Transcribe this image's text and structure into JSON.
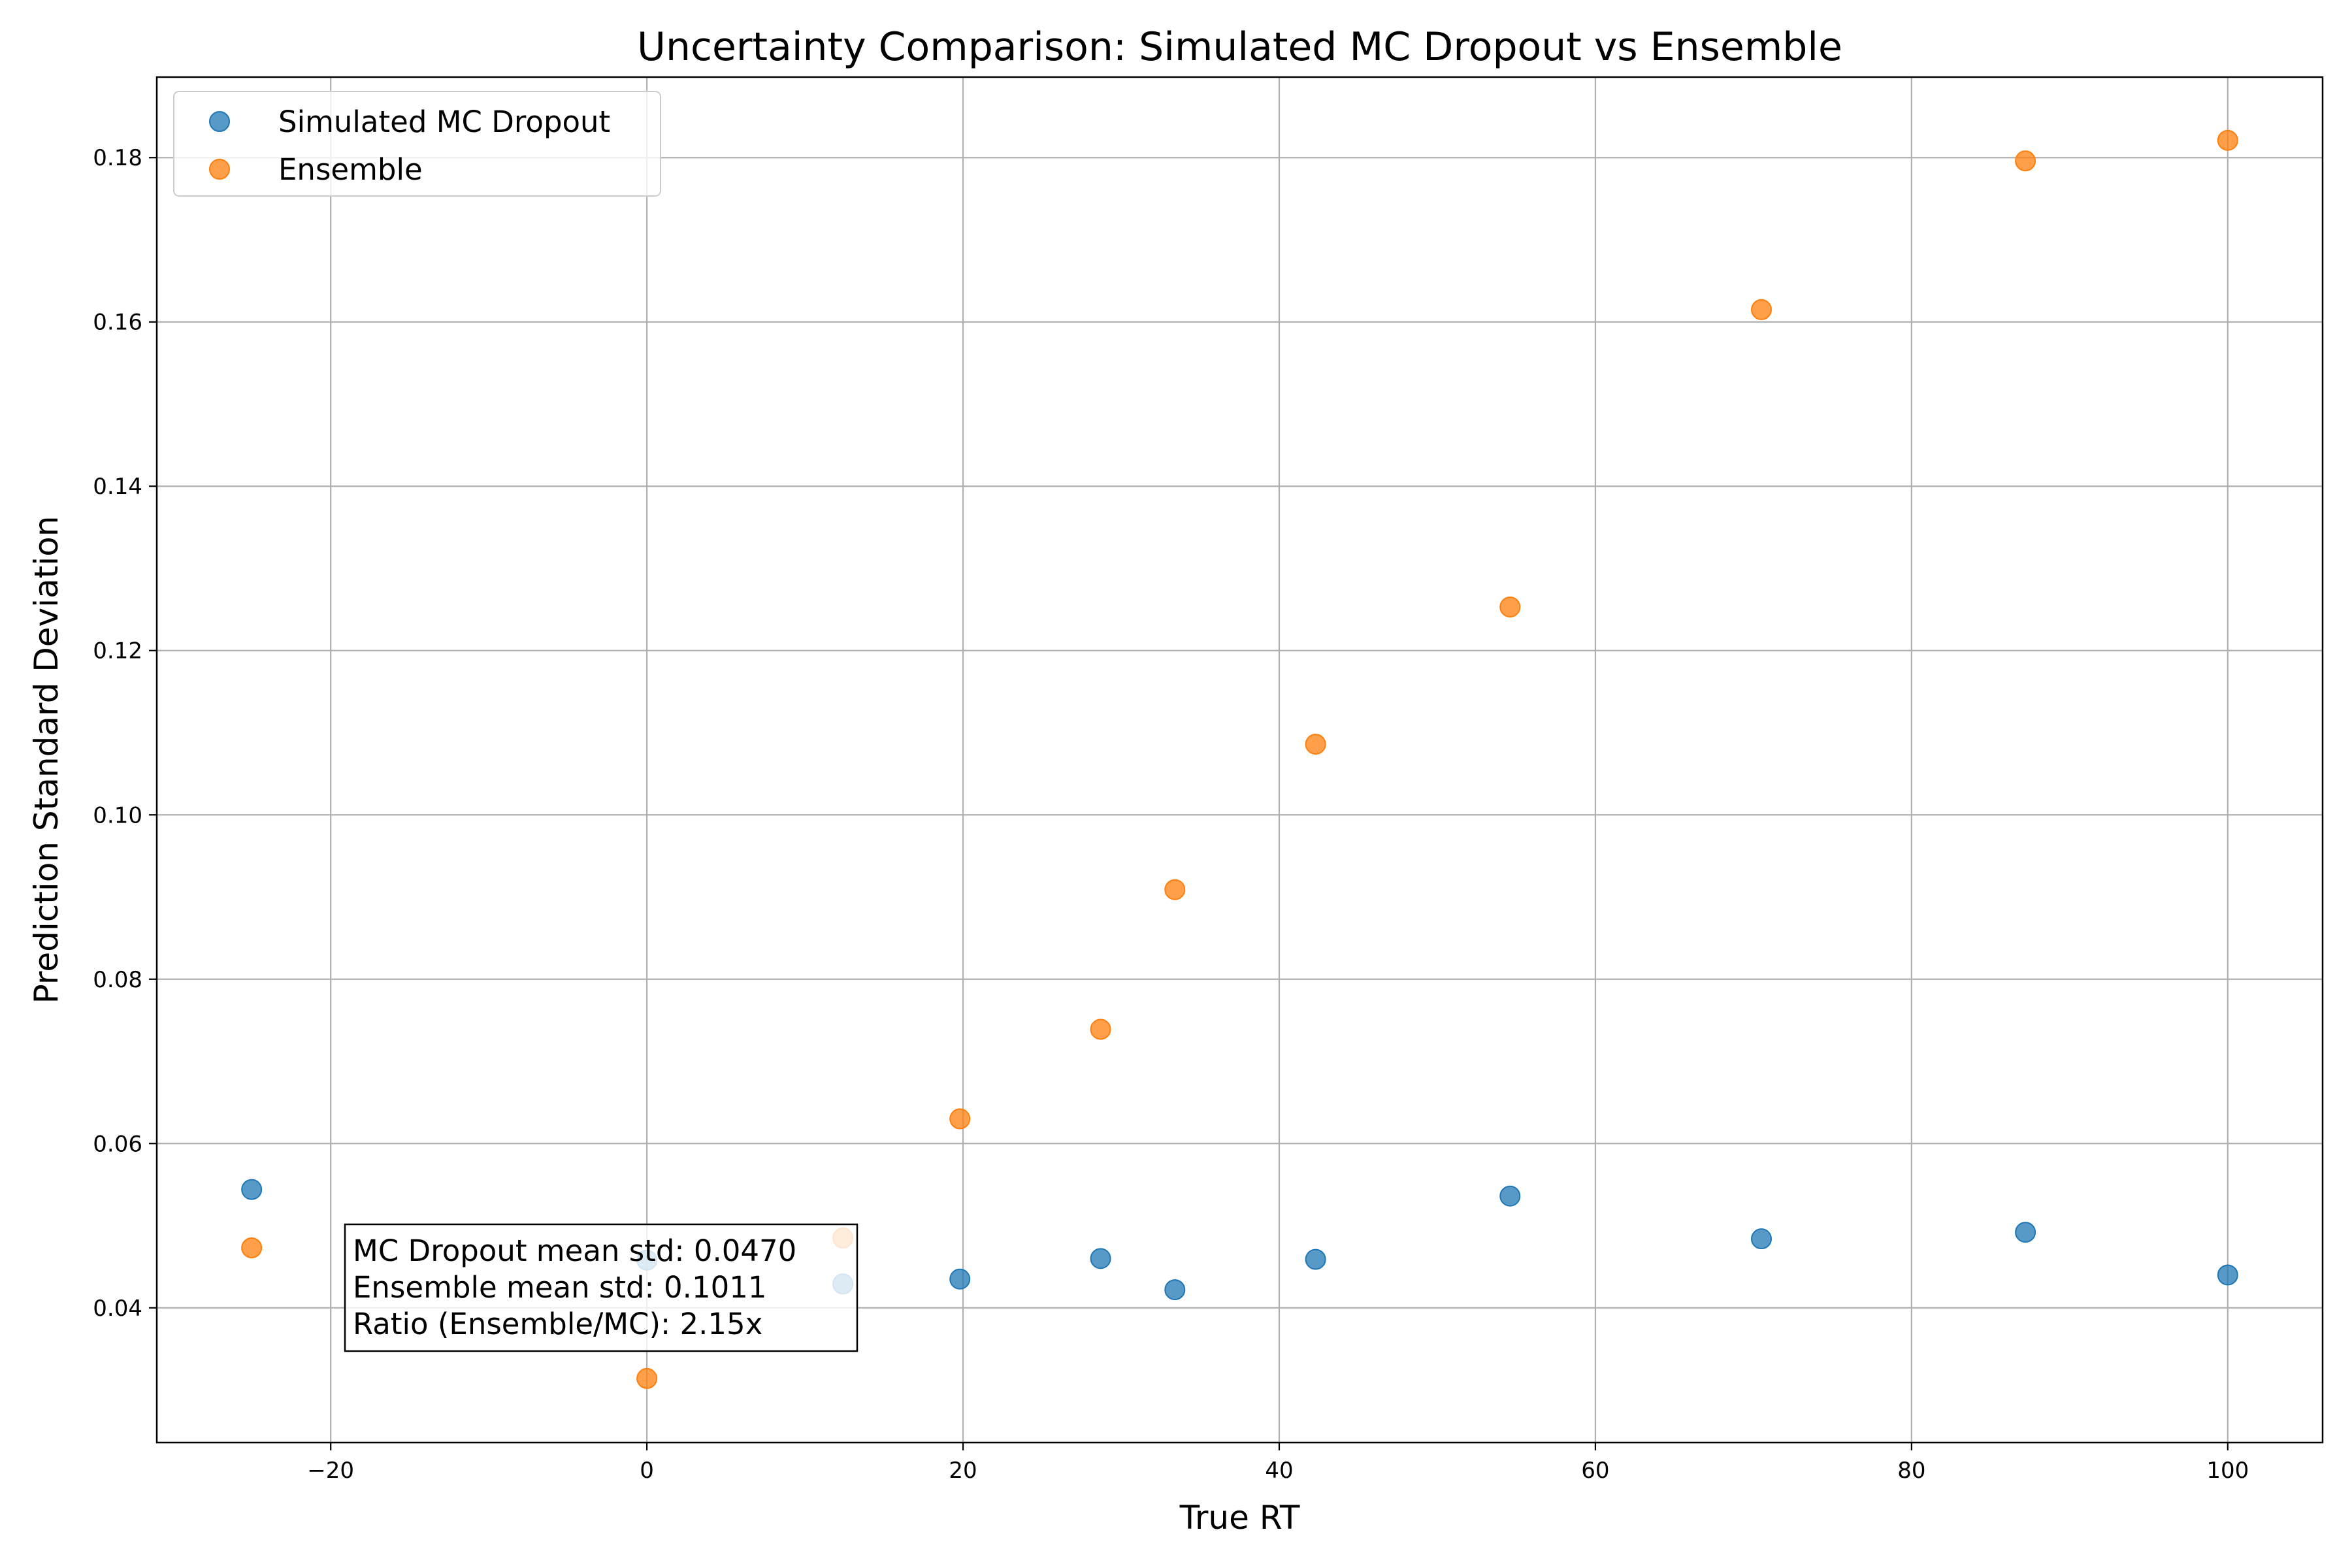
{
  "chart_data": {
    "type": "scatter",
    "title": "Uncertainty Comparison: Simulated MC Dropout vs Ensemble",
    "xlabel": "True RT",
    "ylabel": "Prediction Standard Deviation",
    "xlim": [
      -31,
      106
    ],
    "ylim": [
      0.0236,
      0.1898
    ],
    "xticks": [
      -20,
      0,
      20,
      40,
      60,
      80,
      100
    ],
    "xtick_labels": [
      "−20",
      "0",
      "20",
      "40",
      "60",
      "80",
      "100"
    ],
    "yticks": [
      0.04,
      0.06,
      0.08,
      0.1,
      0.12,
      0.14,
      0.16,
      0.18
    ],
    "ytick_labels": [
      "0.04",
      "0.06",
      "0.08",
      "0.10",
      "0.12",
      "0.14",
      "0.16",
      "0.18"
    ],
    "grid": true,
    "legend_position": "top-left",
    "series": [
      {
        "name": "Simulated MC Dropout",
        "color": "#1f77b4",
        "points": [
          {
            "x": -25,
            "y": 0.0544
          },
          {
            "x": 0,
            "y": 0.0458
          },
          {
            "x": 12.4,
            "y": 0.0429
          },
          {
            "x": 19.8,
            "y": 0.0435
          },
          {
            "x": 28.7,
            "y": 0.046
          },
          {
            "x": 33.4,
            "y": 0.0422
          },
          {
            "x": 42.3,
            "y": 0.0459
          },
          {
            "x": 54.6,
            "y": 0.0536
          },
          {
            "x": 70.5,
            "y": 0.0484
          },
          {
            "x": 87.2,
            "y": 0.0492
          },
          {
            "x": 100,
            "y": 0.044
          }
        ]
      },
      {
        "name": "Ensemble",
        "color": "#ff7f0e",
        "points": [
          {
            "x": -25,
            "y": 0.0473
          },
          {
            "x": 0,
            "y": 0.0314
          },
          {
            "x": 12.4,
            "y": 0.0485
          },
          {
            "x": 19.8,
            "y": 0.063
          },
          {
            "x": 28.7,
            "y": 0.0739
          },
          {
            "x": 33.4,
            "y": 0.0909
          },
          {
            "x": 42.3,
            "y": 0.1086
          },
          {
            "x": 54.6,
            "y": 0.1253
          },
          {
            "x": 70.5,
            "y": 0.1615
          },
          {
            "x": 87.2,
            "y": 0.1796
          },
          {
            "x": 100,
            "y": 0.1821
          }
        ]
      }
    ],
    "annotation": [
      "MC Dropout mean std: 0.0470",
      "Ensemble mean std: 0.1011",
      "Ratio (Ensemble/MC): 2.15x"
    ]
  }
}
